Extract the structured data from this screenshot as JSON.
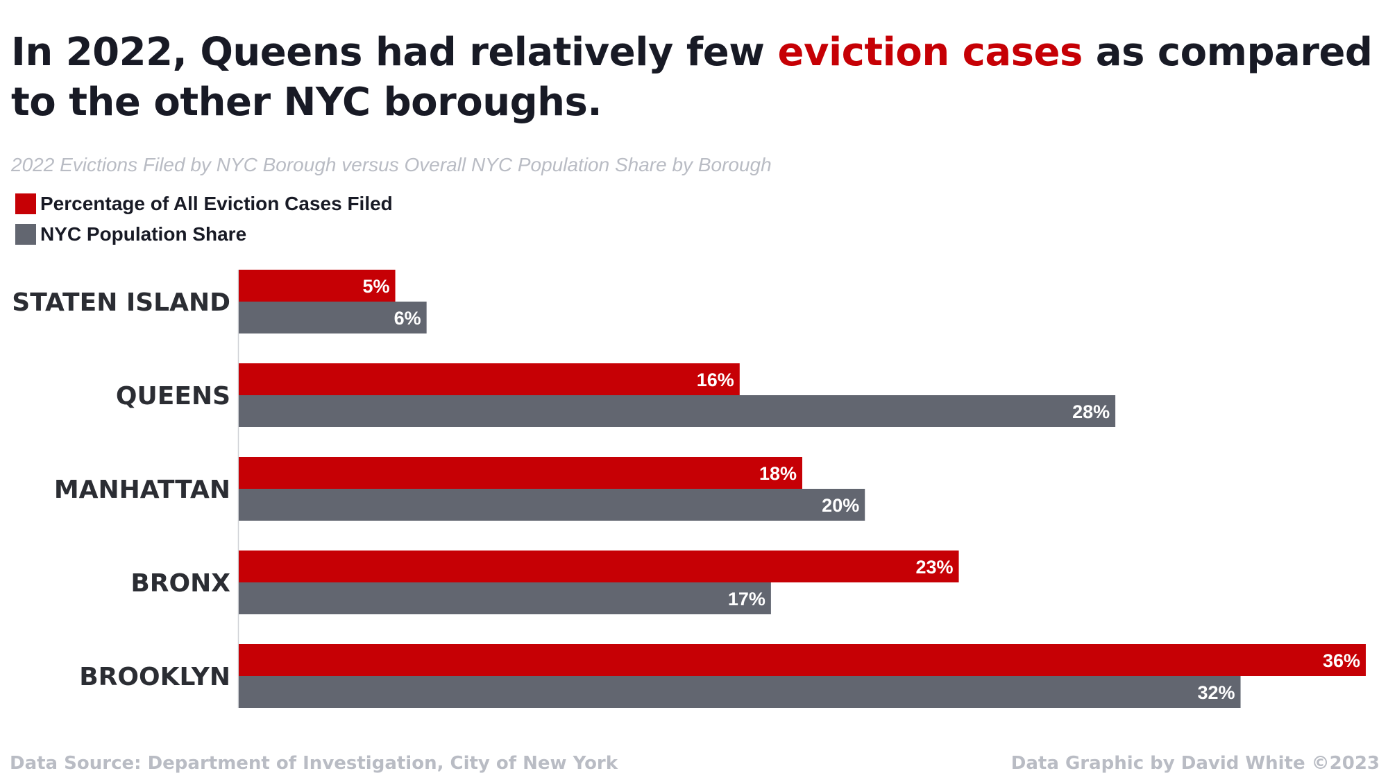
{
  "title": {
    "part1": "In 2022, Queens had relatively few ",
    "accent": "eviction cases",
    "part2": " as compared to the other NYC boroughs."
  },
  "subtitle": "2022 Evictions Filed by NYC Borough versus Overall NYC Population Share by Borough",
  "colors": {
    "evictions": "#c60005",
    "population": "#626670",
    "accent": "#c60005"
  },
  "chart_data": {
    "type": "bar",
    "orientation": "horizontal",
    "categories": [
      "STATEN ISLAND",
      "QUEENS",
      "MANHATTAN",
      "BRONX",
      "BROOKLYN"
    ],
    "series": [
      {
        "name": "Percentage of All Eviction Cases Filed",
        "values": [
          5,
          16,
          18,
          23,
          36
        ],
        "labels": [
          "5%",
          "16%",
          "18%",
          "23%",
          "36%"
        ]
      },
      {
        "name": "NYC Population Share",
        "values": [
          6,
          28,
          20,
          17,
          32
        ],
        "labels": [
          "6%",
          "28%",
          "20%",
          "17%",
          "32%"
        ]
      }
    ],
    "xlim": [
      0,
      36
    ],
    "grid": false,
    "legend": "top-left"
  },
  "footer": {
    "source": "Data Source: Department of Investigation, City of New York",
    "credit": "Data Graphic by David White ©2023"
  }
}
